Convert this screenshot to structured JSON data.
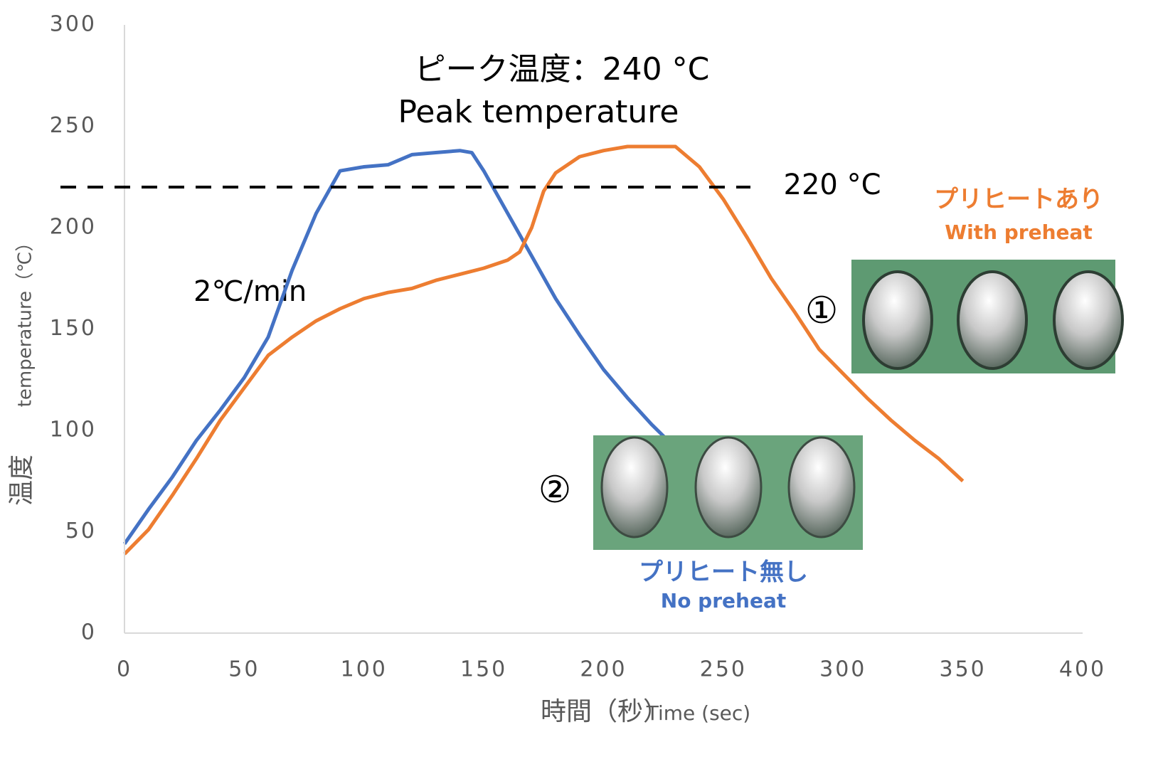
{
  "chart_data": {
    "type": "line",
    "title": "ピーク温度：240 °C",
    "subtitle": "Peak temperature",
    "xlabel": "時間（秒）",
    "xlabel_en": "Time (sec)",
    "ylabel": "温度",
    "ylabel_en": "temperature（℃）",
    "xlim": [
      0,
      400
    ],
    "xticks": [
      0,
      50,
      100,
      150,
      200,
      250,
      300,
      350,
      400
    ],
    "ylim": [
      0,
      300
    ],
    "yticks": [
      0,
      50,
      100,
      150,
      200,
      250,
      300
    ],
    "threshold": 220,
    "threshold_label": "220 °C",
    "rate_label": "2℃/min",
    "series": [
      {
        "name": "プリヒート無し",
        "name_en": "No preheat",
        "marker": "②",
        "color": "#4472c4",
        "x": [
          0,
          10,
          20,
          30,
          40,
          50,
          60,
          70,
          80,
          90,
          100,
          110,
          120,
          130,
          140,
          145,
          150,
          160,
          170,
          180,
          190,
          200,
          210,
          220,
          226
        ],
        "values": [
          44,
          61,
          77,
          95,
          110,
          126,
          146,
          179,
          207,
          228,
          230,
          231,
          236,
          237,
          238,
          237,
          228,
          207,
          186,
          165,
          147,
          130,
          116,
          103,
          96
        ]
      },
      {
        "name": "プリヒートあり",
        "name_en": "With preheat",
        "marker": "①",
        "color": "#ed7d31",
        "x": [
          0,
          10,
          20,
          30,
          40,
          50,
          60,
          70,
          80,
          90,
          100,
          110,
          120,
          130,
          140,
          150,
          160,
          165,
          170,
          175,
          180,
          190,
          200,
          210,
          220,
          230,
          240,
          250,
          260,
          270,
          280,
          290,
          300,
          310,
          320,
          330,
          340,
          350
        ],
        "values": [
          39,
          51,
          68,
          86,
          105,
          121,
          137,
          146,
          154,
          160,
          165,
          168,
          170,
          174,
          177,
          180,
          184,
          188,
          200,
          218,
          227,
          235,
          238,
          240,
          240,
          240,
          230,
          214,
          195,
          175,
          158,
          140,
          128,
          116,
          105,
          95,
          86,
          75
        ]
      }
    ]
  }
}
